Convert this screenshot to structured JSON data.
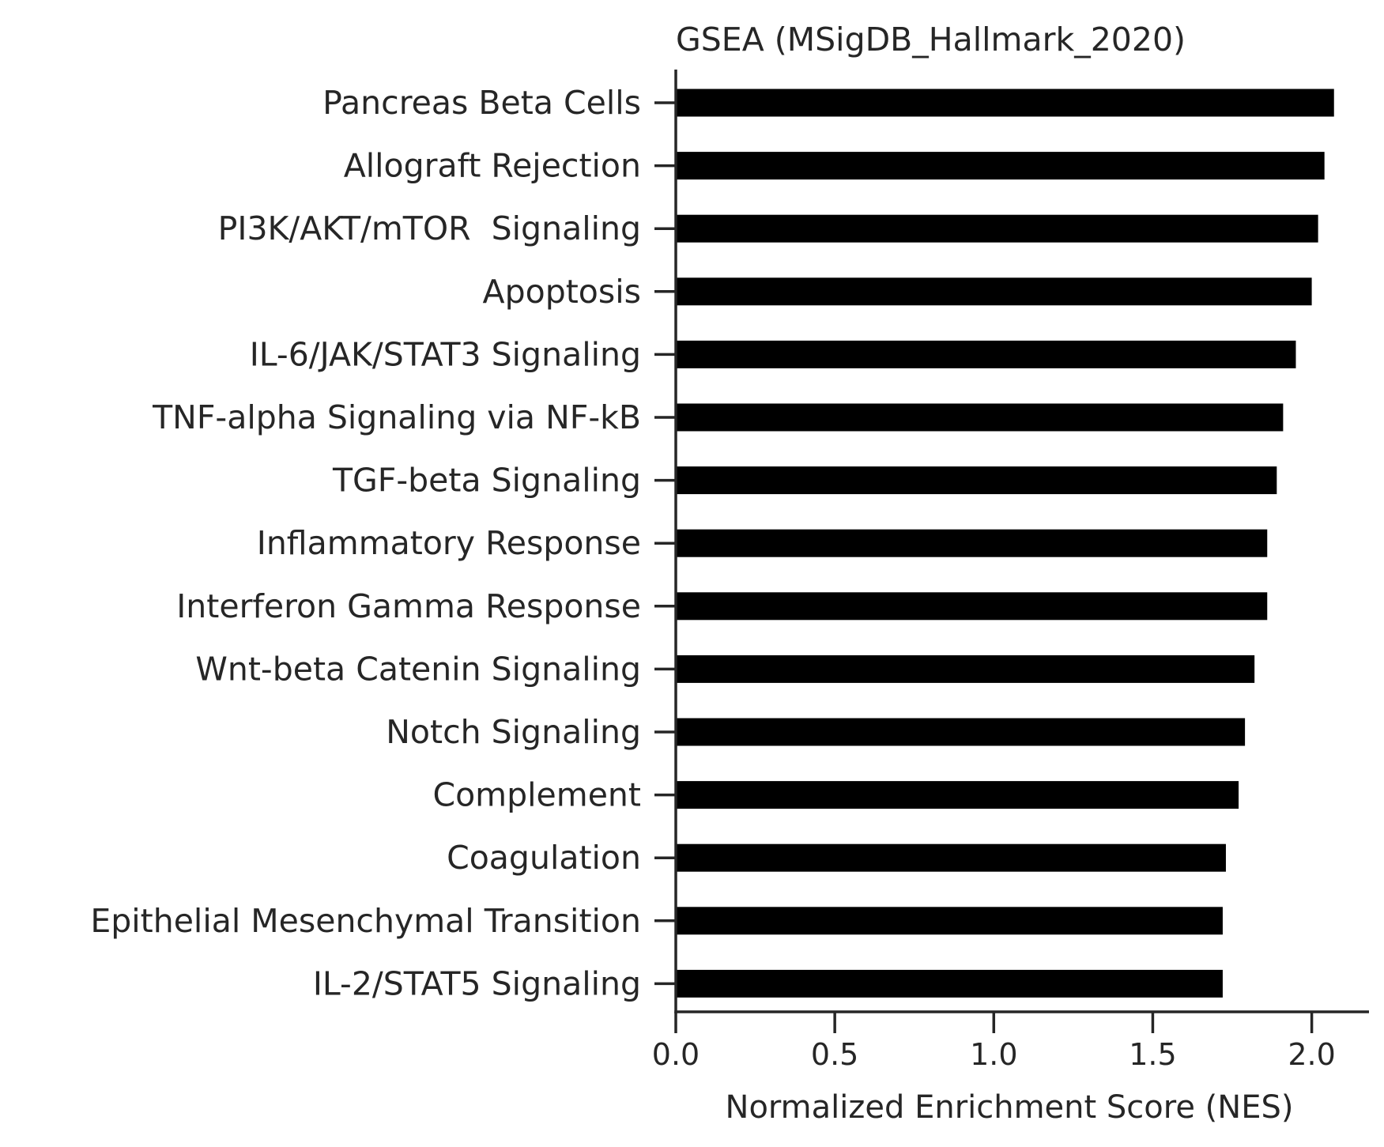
{
  "chart_data": {
    "type": "bar",
    "orientation": "horizontal",
    "title": "GSEA (MSigDB_Hallmark_2020)",
    "xlabel": "Normalized Enrichment Score (NES)",
    "ylabel": "",
    "xlim": [
      0,
      2.18
    ],
    "xticks": [
      0.0,
      0.5,
      1.0,
      1.5,
      2.0
    ],
    "xtick_labels": [
      "0.0",
      "0.5",
      "1.0",
      "1.5",
      "2.0"
    ],
    "grid": false,
    "bar_color": "#000000",
    "categories": [
      "Pancreas Beta Cells",
      "Allograft Rejection",
      "PI3K/AKT/mTOR  Signaling",
      "Apoptosis",
      "IL-6/JAK/STAT3 Signaling",
      "TNF-alpha Signaling via NF-kB",
      "TGF-beta Signaling",
      "Inflammatory Response",
      "Interferon Gamma Response",
      "Wnt-beta Catenin Signaling",
      "Notch Signaling",
      "Complement",
      "Coagulation",
      "Epithelial Mesenchymal Transition",
      "IL-2/STAT5 Signaling"
    ],
    "values": [
      2.07,
      2.04,
      2.02,
      2.0,
      1.95,
      1.91,
      1.89,
      1.86,
      1.86,
      1.82,
      1.79,
      1.77,
      1.73,
      1.72,
      1.72
    ]
  }
}
